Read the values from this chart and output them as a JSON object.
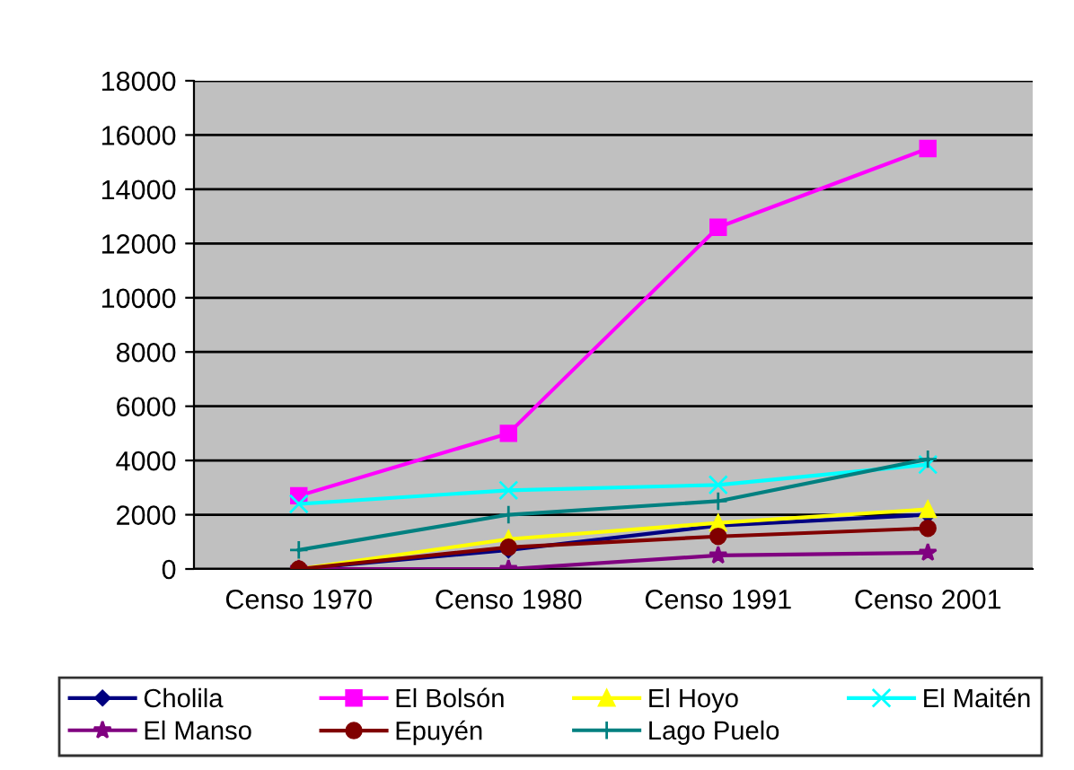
{
  "chart_data": {
    "type": "line",
    "categories": [
      "Censo 1970",
      "Censo 1980",
      "Censo 1991",
      "Censo 2001"
    ],
    "series": [
      {
        "name": "Cholila",
        "color": "#000080",
        "marker": "diamond",
        "values": [
          0,
          700,
          1600,
          2000
        ]
      },
      {
        "name": "El Bolsón",
        "color": "#ff00ff",
        "marker": "square",
        "values": [
          2700,
          5000,
          12600,
          15500
        ]
      },
      {
        "name": "El Hoyo",
        "color": "#ffff00",
        "marker": "triangle",
        "values": [
          0,
          1100,
          1700,
          2200
        ]
      },
      {
        "name": "El Maitén",
        "color": "#00ffff",
        "marker": "cross",
        "values": [
          2400,
          2900,
          3100,
          3850
        ]
      },
      {
        "name": "El Manso",
        "color": "#800080",
        "marker": "star",
        "values": [
          0,
          0,
          500,
          600
        ]
      },
      {
        "name": "Epuyén",
        "color": "#800000",
        "marker": "circle",
        "values": [
          0,
          800,
          1200,
          1500
        ]
      },
      {
        "name": "Lago Puelo",
        "color": "#008080",
        "marker": "plus",
        "values": [
          700,
          2000,
          2500,
          4050
        ]
      }
    ],
    "ylim": [
      0,
      18000
    ],
    "yticks": [
      0,
      2000,
      4000,
      6000,
      8000,
      10000,
      12000,
      14000,
      16000,
      18000
    ],
    "grid": "y",
    "legend": "bottom"
  }
}
